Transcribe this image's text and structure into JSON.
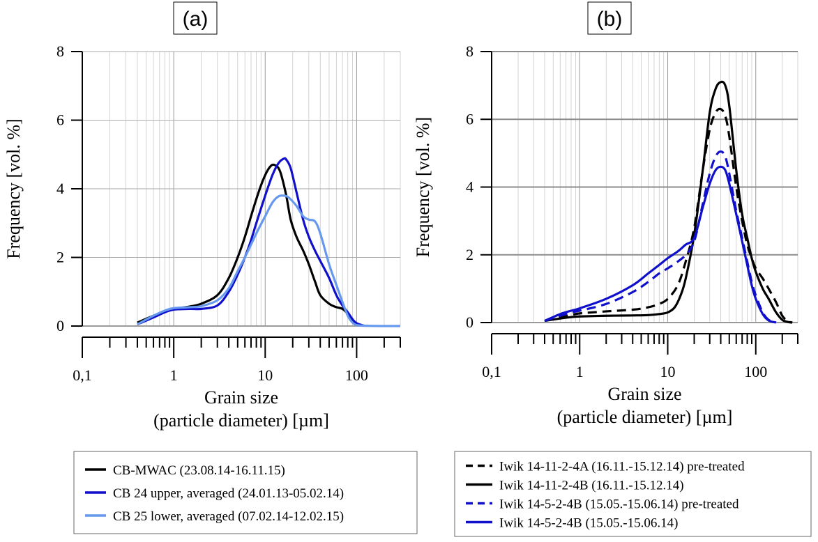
{
  "chart_data": [
    {
      "type": "line",
      "panel_label": "(a)",
      "xscale": "log",
      "xlim": [
        0.1,
        300
      ],
      "ylim": [
        0,
        8
      ],
      "xticks": [
        {
          "v": 0.1,
          "label": "0,1"
        },
        {
          "v": 1,
          "label": "1"
        },
        {
          "v": 10,
          "label": "10"
        },
        {
          "v": 100,
          "label": "100"
        }
      ],
      "yticks": [
        {
          "v": 0,
          "label": "0"
        },
        {
          "v": 2,
          "label": "2"
        },
        {
          "v": 4,
          "label": "4"
        },
        {
          "v": 6,
          "label": "6"
        },
        {
          "v": 8,
          "label": "8"
        }
      ],
      "xlabel": "Grain size",
      "xlabel2": "(particle diameter) [µm]",
      "ylabel": "Frequency [vol. %]",
      "grid": "log-vertical + major-horizontal",
      "legend": "below",
      "series": [
        {
          "name": "CB-MWAC (23.08.14-16.11.15)",
          "color": "#000000",
          "dash": "solid",
          "x": [
            0.4,
            0.6,
            0.8,
            1,
            1.5,
            2,
            3,
            4,
            5,
            6,
            7,
            8,
            9,
            10,
            11,
            12,
            13,
            14,
            15,
            17,
            19,
            22,
            26,
            30,
            35,
            40,
            50,
            60,
            70,
            80,
            90,
            100,
            120
          ],
          "y": [
            0.1,
            0.3,
            0.42,
            0.5,
            0.57,
            0.65,
            0.9,
            1.4,
            2.0,
            2.6,
            3.2,
            3.7,
            4.1,
            4.4,
            4.6,
            4.7,
            4.68,
            4.6,
            4.4,
            3.8,
            3.1,
            2.6,
            2.2,
            1.8,
            1.3,
            0.9,
            0.65,
            0.55,
            0.5,
            0.35,
            0.15,
            0.05,
            0.01
          ]
        },
        {
          "name": "CB 24 upper, averaged (24.01.13-05.02.14)",
          "color": "#1010cc",
          "dash": "solid",
          "x": [
            0.4,
            0.6,
            0.8,
            1,
            1.5,
            2,
            3,
            4,
            5,
            6,
            7,
            8,
            10,
            12,
            14,
            16,
            17,
            19,
            22,
            26,
            30,
            35,
            40,
            50,
            60,
            70,
            80,
            90,
            100,
            120
          ],
          "y": [
            0.05,
            0.25,
            0.4,
            0.48,
            0.5,
            0.5,
            0.6,
            1.0,
            1.5,
            2.0,
            2.5,
            3.0,
            3.8,
            4.4,
            4.75,
            4.88,
            4.85,
            4.6,
            3.9,
            3.1,
            2.6,
            2.2,
            1.9,
            1.4,
            0.9,
            0.6,
            0.4,
            0.2,
            0.08,
            0.01
          ]
        },
        {
          "name": "CB 25 lower, averaged (07.02.14-12.02.15)",
          "color": "#6699ee",
          "dash": "solid",
          "x": [
            0.4,
            0.6,
            0.8,
            1,
            1.5,
            2,
            3,
            4,
            5,
            6,
            8,
            10,
            12,
            14,
            16,
            18,
            22,
            26,
            30,
            35,
            40,
            50,
            60,
            70,
            80,
            90,
            100,
            120,
            200,
            300
          ],
          "y": [
            0.05,
            0.3,
            0.45,
            0.52,
            0.55,
            0.58,
            0.75,
            1.1,
            1.6,
            2.0,
            2.7,
            3.2,
            3.6,
            3.78,
            3.8,
            3.75,
            3.5,
            3.2,
            3.1,
            3.05,
            2.7,
            1.8,
            1.2,
            0.7,
            0.3,
            0.1,
            0.03,
            0.01,
            0.0,
            0.0
          ]
        }
      ]
    },
    {
      "type": "line",
      "panel_label": "(b)",
      "xscale": "log",
      "xlim": [
        0.1,
        300
      ],
      "ylim": [
        0,
        8
      ],
      "xticks": [
        {
          "v": 0.1,
          "label": "0,1"
        },
        {
          "v": 1,
          "label": "1"
        },
        {
          "v": 10,
          "label": "10"
        },
        {
          "v": 100,
          "label": "100"
        }
      ],
      "yticks": [
        {
          "v": 0,
          "label": "0"
        },
        {
          "v": 2,
          "label": "2"
        },
        {
          "v": 4,
          "label": "4"
        },
        {
          "v": 6,
          "label": "6"
        },
        {
          "v": 8,
          "label": "8"
        }
      ],
      "xlabel": "Grain size",
      "xlabel2": "(particle diameter) [µm]",
      "ylabel": "Frequency [vol. %]",
      "grid": "log-vertical + major-horizontal",
      "legend": "below",
      "series": [
        {
          "name": "Iwik 14-11-2-4A (16.11.-15.12.14) pre-treated",
          "color": "#000000",
          "dash": "dashed",
          "x": [
            0.4,
            0.6,
            0.8,
            1,
            2,
            4,
            6,
            8,
            10,
            13,
            16,
            20,
            25,
            30,
            35,
            40,
            45,
            50,
            60,
            70,
            80,
            90,
            100,
            120,
            140,
            170,
            200,
            230,
            260
          ],
          "y": [
            0.05,
            0.15,
            0.22,
            0.27,
            0.33,
            0.38,
            0.45,
            0.55,
            0.7,
            1.1,
            1.8,
            2.8,
            4.5,
            5.7,
            6.2,
            6.3,
            6.1,
            5.5,
            4.0,
            3.0,
            2.3,
            1.9,
            1.6,
            1.3,
            1.0,
            0.6,
            0.2,
            0.05,
            0.0
          ]
        },
        {
          "name": "Iwik 14-11-2-4B (16.11.-15.12.14)",
          "color": "#000000",
          "dash": "solid",
          "x": [
            0.4,
            0.6,
            0.8,
            1,
            2,
            4,
            6,
            8,
            10,
            12,
            14,
            16,
            20,
            25,
            30,
            35,
            40,
            45,
            50,
            60,
            70,
            80,
            90,
            100,
            120,
            140,
            170,
            200,
            230,
            260
          ],
          "y": [
            0.05,
            0.12,
            0.16,
            0.18,
            0.2,
            0.21,
            0.22,
            0.25,
            0.3,
            0.45,
            0.8,
            1.3,
            2.6,
            4.5,
            6.2,
            6.9,
            7.1,
            7.0,
            6.4,
            4.5,
            3.2,
            2.5,
            1.9,
            1.5,
            1.0,
            0.7,
            0.3,
            0.08,
            0.02,
            0.0
          ]
        },
        {
          "name": "Iwik 14-5-2-4B (15.05.-15.06.14) pre-treated",
          "color": "#1010cc",
          "dash": "dashed",
          "x": [
            0.4,
            0.6,
            0.8,
            1,
            2,
            4,
            6,
            8,
            10,
            13,
            16,
            20,
            25,
            30,
            35,
            40,
            45,
            50,
            60,
            70,
            80,
            90,
            100,
            120,
            140,
            170
          ],
          "y": [
            0.05,
            0.2,
            0.3,
            0.35,
            0.55,
            0.9,
            1.2,
            1.45,
            1.6,
            1.8,
            2.0,
            2.4,
            3.5,
            4.4,
            4.9,
            5.05,
            4.9,
            4.4,
            3.3,
            2.5,
            1.8,
            1.2,
            0.8,
            0.3,
            0.08,
            0.0
          ]
        },
        {
          "name": "Iwik 14-5-2-4B (15.05.-15.06.14)",
          "color": "#1010cc",
          "dash": "solid",
          "x": [
            0.4,
            0.6,
            0.8,
            1,
            2,
            4,
            6,
            8,
            10,
            13,
            16,
            20,
            25,
            30,
            35,
            40,
            45,
            50,
            60,
            70,
            80,
            90,
            100,
            120,
            140,
            170
          ],
          "y": [
            0.05,
            0.25,
            0.35,
            0.42,
            0.7,
            1.1,
            1.45,
            1.7,
            1.9,
            2.1,
            2.3,
            2.5,
            3.4,
            4.1,
            4.5,
            4.6,
            4.5,
            4.1,
            3.2,
            2.4,
            1.7,
            1.1,
            0.7,
            0.25,
            0.06,
            0.0
          ]
        }
      ]
    }
  ]
}
